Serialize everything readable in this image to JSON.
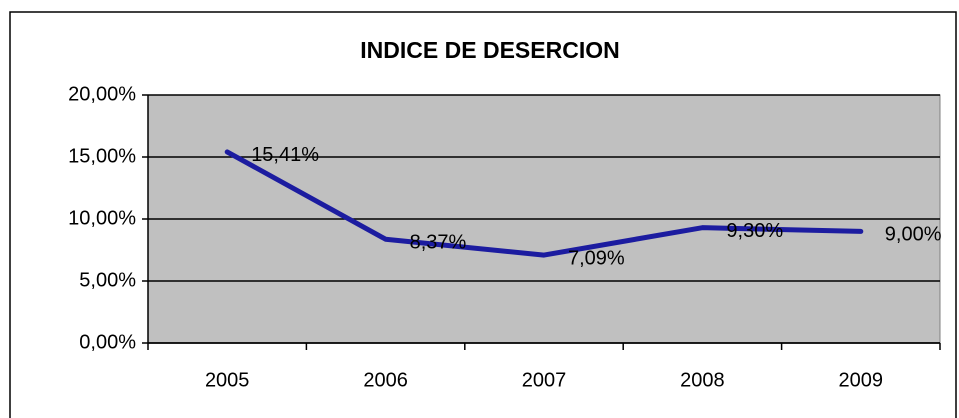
{
  "chart_data": {
    "type": "line",
    "title": "INDICE DE DESERCION",
    "categories": [
      "2005",
      "2006",
      "2007",
      "2008",
      "2009"
    ],
    "values": [
      15.41,
      8.37,
      7.09,
      9.3,
      9.0
    ],
    "value_labels": [
      "15,41%",
      "8,37%",
      "7,09%",
      "9,30%",
      "9,00%"
    ],
    "color": "#1c1ca0",
    "ylim": [
      0,
      20
    ],
    "yticks": [
      {
        "value": 0,
        "label": "0,00%"
      },
      {
        "value": 5,
        "label": "5,00%"
      },
      {
        "value": 10,
        "label": "10,00%"
      },
      {
        "value": 15,
        "label": "15,00%"
      },
      {
        "value": 20,
        "label": "20,00%"
      }
    ],
    "grid": true
  }
}
